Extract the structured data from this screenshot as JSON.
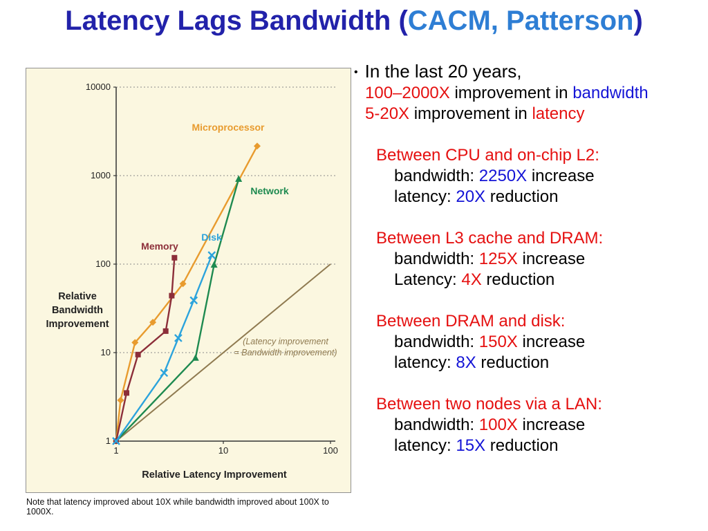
{
  "slide": {
    "title": [
      {
        "t": "Latency Lags Bandwidth (",
        "c": "navy"
      },
      {
        "t": "CACM, Patterson",
        "c": "lightblue"
      },
      {
        "t": ")",
        "c": "navy"
      }
    ]
  },
  "colors": {
    "navy": "#2222AA",
    "lightblue": "#2E7ED4",
    "black": "#000000",
    "red": "#E51010",
    "blue": "#1414D6",
    "chart_bg": "#FBF7E0",
    "chart_border": "#909090",
    "grid": "#8A8A8A",
    "axis": "#333333"
  },
  "text_lines": [
    {
      "indent": 0,
      "bullet": true,
      "big": true,
      "segments": [
        {
          "t": "In the last 20 years,",
          "c": "black"
        }
      ]
    },
    {
      "indent": 1,
      "segments": [
        {
          "t": "100–2000X",
          "c": "red"
        },
        {
          "t": " improvement in ",
          "c": "black"
        },
        {
          "t": "bandwidth",
          "c": "blue"
        }
      ]
    },
    {
      "indent": 1,
      "segments": [
        {
          "t": "5-20X",
          "c": "red"
        },
        {
          "t": " improvement in ",
          "c": "black"
        },
        {
          "t": "latency",
          "c": "red"
        }
      ]
    },
    {
      "indent": 2,
      "gap": true,
      "segments": [
        {
          "t": "Between CPU and on-chip L2:",
          "c": "red"
        }
      ]
    },
    {
      "indent": 3,
      "segments": [
        {
          "t": "bandwidth: ",
          "c": "black"
        },
        {
          "t": "2250X",
          "c": "blue"
        },
        {
          "t": " increase",
          "c": "black"
        }
      ]
    },
    {
      "indent": 3,
      "segments": [
        {
          "t": "latency: ",
          "c": "black"
        },
        {
          "t": "20X",
          "c": "blue"
        },
        {
          "t": " reduction",
          "c": "black"
        }
      ]
    },
    {
      "indent": 2,
      "gap": true,
      "segments": [
        {
          "t": "Between L3 cache and DRAM:",
          "c": "red"
        }
      ]
    },
    {
      "indent": 3,
      "segments": [
        {
          "t": "bandwidth: ",
          "c": "black"
        },
        {
          "t": "125X",
          "c": "red"
        },
        {
          "t": " increase",
          "c": "black"
        }
      ]
    },
    {
      "indent": 3,
      "segments": [
        {
          "t": "Latency: ",
          "c": "black"
        },
        {
          "t": "4X",
          "c": "red"
        },
        {
          "t": " reduction",
          "c": "black"
        }
      ]
    },
    {
      "indent": 2,
      "gap": true,
      "segments": [
        {
          "t": "Between DRAM and disk:",
          "c": "red"
        }
      ]
    },
    {
      "indent": 3,
      "segments": [
        {
          "t": "bandwidth: ",
          "c": "black"
        },
        {
          "t": "150X",
          "c": "red"
        },
        {
          "t": " increase",
          "c": "black"
        }
      ]
    },
    {
      "indent": 3,
      "segments": [
        {
          "t": "latency: ",
          "c": "black"
        },
        {
          "t": "8X",
          "c": "blue"
        },
        {
          "t": " reduction",
          "c": "black"
        }
      ]
    },
    {
      "indent": 2,
      "gap": true,
      "segments": [
        {
          "t": "Between two nodes via a LAN:",
          "c": "red"
        }
      ]
    },
    {
      "indent": 3,
      "segments": [
        {
          "t": "bandwidth: ",
          "c": "black"
        },
        {
          "t": "100X",
          "c": "red"
        },
        {
          "t": " increase",
          "c": "black"
        }
      ]
    },
    {
      "indent": 3,
      "segments": [
        {
          "t": "latency: ",
          "c": "black"
        },
        {
          "t": "15X",
          "c": "blue"
        },
        {
          "t": " reduction",
          "c": "black"
        }
      ]
    }
  ],
  "chart_data": {
    "type": "line",
    "title": "",
    "xlabel": "Relative Latency Improvement",
    "ylabel": "Relative Bandwidth Improvement",
    "xscale": "log",
    "yscale": "log",
    "xlim": [
      1,
      100
    ],
    "ylim": [
      1,
      10000
    ],
    "x_ticks": [
      1,
      10,
      100
    ],
    "y_ticks": [
      1,
      10,
      100,
      1000,
      10000
    ],
    "gridlines_y": [
      10,
      100,
      1000,
      10000
    ],
    "grid_style": "dotted",
    "series": [
      {
        "name": "Microprocessor",
        "color": "#E89B2E",
        "marker": "diamond",
        "points": [
          [
            1,
            1
          ],
          [
            1.1,
            2.9
          ],
          [
            1.5,
            13
          ],
          [
            2.2,
            22
          ],
          [
            4.2,
            60
          ],
          [
            20.7,
            2160
          ]
        ],
        "label_pos": [
          292,
          90
        ]
      },
      {
        "name": "Network",
        "color": "#1E8A50",
        "marker": "triangle",
        "points": [
          [
            1,
            1
          ],
          [
            5.5,
            8.7
          ],
          [
            8.2,
            98
          ],
          [
            13.9,
            915
          ]
        ],
        "label_pos": [
          352,
          182
        ]
      },
      {
        "name": "Memory",
        "color": "#8C2E39",
        "marker": "square",
        "points": [
          [
            1,
            1
          ],
          [
            1.25,
            3.5
          ],
          [
            1.6,
            9.5
          ],
          [
            2.9,
            17.5
          ],
          [
            3.3,
            44
          ],
          [
            3.5,
            118
          ]
        ],
        "label_pos": [
          193,
          262
        ]
      },
      {
        "name": "Disk",
        "color": "#2BA3DC",
        "marker": "x",
        "points": [
          [
            1,
            1
          ],
          [
            2.8,
            5.9
          ],
          [
            3.8,
            14.6
          ],
          [
            5.3,
            39
          ],
          [
            7.8,
            126
          ]
        ],
        "label_pos": [
          268,
          249
        ]
      }
    ],
    "reference_line": {
      "points": [
        [
          1,
          1
        ],
        [
          100,
          100
        ]
      ],
      "color": "#8F7A50",
      "label": [
        "(Latency improvement",
        "= Bandwidth improvement)"
      ],
      "label_pos": [
        375,
        399
      ]
    }
  },
  "caption": "Note that latency improved about 10X while bandwidth improved about 100X to 1000X."
}
